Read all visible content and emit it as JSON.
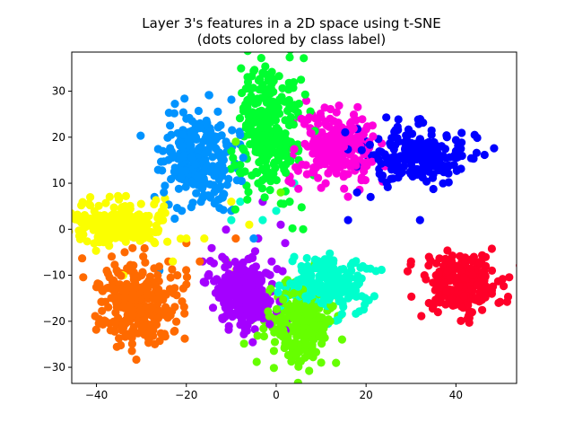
{
  "chart_data": {
    "type": "scatter",
    "title": "Layer 3's features in a 2D space using t-SNE",
    "subtitle": "(dots colored by class label)",
    "xlabel": "",
    "ylabel": "",
    "xlim": [
      -45.5,
      53.5
    ],
    "ylim": [
      -33.5,
      38.5
    ],
    "xticks": [
      -40,
      -20,
      0,
      20,
      40
    ],
    "yticks": [
      -30,
      -20,
      -10,
      0,
      10,
      20,
      30
    ],
    "xtick_labels": [
      "−40",
      "−20",
      "0",
      "20",
      "40"
    ],
    "ytick_labels": [
      "−30",
      "−20",
      "−10",
      "0",
      "10",
      "20",
      "30"
    ],
    "grid": false,
    "legend": "none",
    "marker": "circle",
    "series": [
      {
        "color": "#ff0029",
        "center": [
          41,
          -12
        ],
        "spread": [
          4.5,
          3.2
        ],
        "count": 220,
        "points": [
          [
            30,
            -7
          ],
          [
            34,
            -6
          ],
          [
            36,
            -18
          ],
          [
            44,
            -6
          ],
          [
            48,
            -14
          ],
          [
            39,
            -15
          ],
          [
            33,
            -10
          ],
          [
            46,
            -10
          ]
        ]
      },
      {
        "color": "#0000ff",
        "center": [
          31,
          16
        ],
        "spread": [
          6,
          3.0
        ],
        "count": 220,
        "points": [
          [
            18,
            8
          ],
          [
            16,
            2
          ],
          [
            23,
            12
          ],
          [
            21,
            7
          ],
          [
            32,
            2
          ],
          [
            38,
            20
          ],
          [
            40,
            17
          ],
          [
            26,
            11
          ]
        ]
      },
      {
        "color": "#ff00dc",
        "center": [
          13,
          18
        ],
        "spread": [
          4.5,
          3.8
        ],
        "count": 240,
        "points": [
          [
            10,
            9
          ],
          [
            18,
            22
          ],
          [
            7,
            18
          ],
          [
            12,
            24
          ],
          [
            16,
            12
          ],
          [
            20,
            17
          ],
          [
            11,
            10
          ]
        ]
      },
      {
        "color": "#00ff30",
        "center": [
          -2,
          22
        ],
        "spread": [
          3.3,
          7.5
        ],
        "count": 300,
        "points": [
          [
            -3,
            34
          ],
          [
            -1,
            33
          ],
          [
            -8,
            14
          ],
          [
            -4,
            10
          ],
          [
            3,
            6
          ],
          [
            -10,
            17
          ],
          [
            5,
            15
          ],
          [
            6,
            0
          ]
        ]
      },
      {
        "color": "#0093ff",
        "center": [
          -17,
          15
        ],
        "spread": [
          4.2,
          5.0
        ],
        "count": 260,
        "points": [
          [
            -20,
            24
          ],
          [
            -17,
            22
          ],
          [
            -13,
            12
          ],
          [
            -12,
            7
          ],
          [
            -10,
            4
          ],
          [
            -21,
            4
          ],
          [
            -25,
            8
          ],
          [
            -5,
            -2
          ],
          [
            -26,
            -9
          ]
        ]
      },
      {
        "color": "#fbff00",
        "center": [
          -35,
          1
        ],
        "spread": [
          5.2,
          2.5
        ],
        "count": 240,
        "points": [
          [
            -44,
            2
          ],
          [
            -27,
            -3
          ],
          [
            -25,
            5
          ],
          [
            -20,
            -2
          ],
          [
            -16,
            -2
          ],
          [
            -23,
            -7
          ],
          [
            -9,
            -9
          ],
          [
            -34,
            -10
          ],
          [
            -10,
            6
          ],
          [
            -6,
            1
          ]
        ]
      },
      {
        "color": "#ff6a00",
        "center": [
          -31,
          -16
        ],
        "spread": [
          4.5,
          4.3
        ],
        "count": 300,
        "points": [
          [
            -38,
            -20
          ],
          [
            -27,
            -25
          ],
          [
            -22,
            -10
          ],
          [
            -20,
            -12
          ],
          [
            -24,
            -7
          ],
          [
            -17,
            -7
          ],
          [
            -9,
            -2
          ],
          [
            -20,
            -3
          ]
        ]
      },
      {
        "color": "#a400ff",
        "center": [
          -7,
          -14
        ],
        "spread": [
          3.5,
          4.0
        ],
        "count": 260,
        "points": [
          [
            -4,
            -2
          ],
          [
            1,
            1
          ],
          [
            -3,
            6
          ],
          [
            -12,
            -6
          ],
          [
            -1,
            -7
          ],
          [
            2,
            -3
          ],
          [
            -15,
            -10
          ]
        ]
      },
      {
        "color": "#66ff00",
        "center": [
          6,
          -21
        ],
        "spread": [
          3.8,
          4.0
        ],
        "count": 240,
        "points": [
          [
            2,
            -14
          ],
          [
            10,
            -29
          ],
          [
            5,
            -29
          ],
          [
            -1,
            -20
          ],
          [
            12,
            -20
          ],
          [
            9,
            -12
          ],
          [
            1,
            8
          ],
          [
            -9,
            19
          ],
          [
            -11,
            -7
          ]
        ]
      },
      {
        "color": "#00ffcd",
        "center": [
          11,
          -12
        ],
        "spread": [
          4.5,
          2.8
        ],
        "count": 220,
        "points": [
          [
            16,
            -15
          ],
          [
            7,
            -8
          ],
          [
            4,
            -6
          ],
          [
            -3,
            2
          ],
          [
            0,
            4
          ],
          [
            -8,
            6
          ],
          [
            4,
            10
          ],
          [
            -5,
            -11
          ],
          [
            -10,
            2
          ]
        ]
      }
    ]
  }
}
